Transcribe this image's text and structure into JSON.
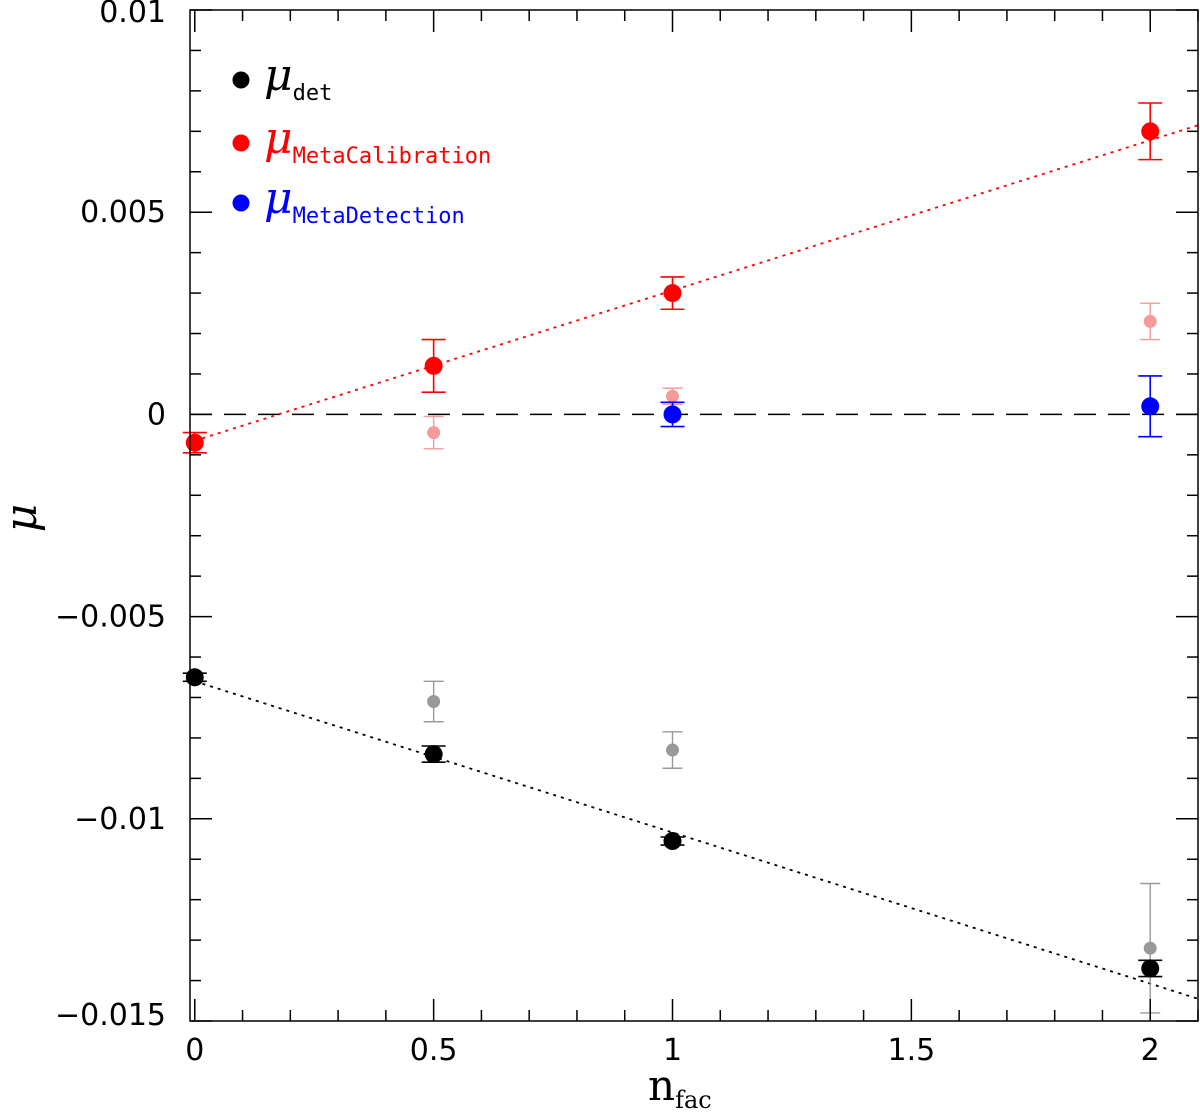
{
  "chart_data": {
    "type": "scatter",
    "title": "",
    "xlabel": "n",
    "xlabel_sub": "fac",
    "ylabel": "μ",
    "xlim": [
      -0.01,
      2.1
    ],
    "ylim": [
      -0.015,
      0.01
    ],
    "x_ticks": [
      0,
      0.5,
      1,
      1.5,
      2
    ],
    "x_tick_labels": [
      "0",
      "0.5",
      "1",
      "1.5",
      "2"
    ],
    "y_ticks": [
      -0.015,
      -0.01,
      -0.005,
      0,
      0.005,
      0.01
    ],
    "y_tick_labels": [
      "−0.015",
      "−0.01",
      "−0.005",
      "0",
      "0.005",
      "0.01"
    ],
    "reference_line": {
      "y": 0,
      "style": "dashed"
    },
    "legend": {
      "position": "top-left",
      "entries": [
        {
          "symbol": "μ",
          "sub": "det",
          "color": "#000000"
        },
        {
          "symbol": "μ",
          "sub": "MetaCalibration",
          "color": "#ff0000"
        },
        {
          "symbol": "μ",
          "sub": "MetaDetection",
          "color": "#0000ff"
        }
      ]
    },
    "series": [
      {
        "name": "μ_det (faint)",
        "color": "#999999",
        "size": "small",
        "points": [
          {
            "x": 0.5,
            "y": -0.0071,
            "err": 0.0005
          },
          {
            "x": 1.0,
            "y": -0.0083,
            "err": 0.00045
          },
          {
            "x": 2.0,
            "y": -0.0132,
            "err": 0.0016
          }
        ]
      },
      {
        "name": "μ_MetaCalibration (faint)",
        "color": "#f49a9a",
        "size": "small",
        "points": [
          {
            "x": 0.5,
            "y": -0.00045,
            "err": 0.0004
          },
          {
            "x": 1.0,
            "y": 0.00045,
            "err": 0.0002
          },
          {
            "x": 2.0,
            "y": 0.0023,
            "err": 0.00045
          }
        ]
      },
      {
        "name": "μ_det",
        "color": "#000000",
        "size": "large",
        "points": [
          {
            "x": 0.0,
            "y": -0.0065,
            "err": 0.0001
          },
          {
            "x": 0.5,
            "y": -0.0084,
            "err": 0.0002
          },
          {
            "x": 1.0,
            "y": -0.01055,
            "err": 0.0001
          },
          {
            "x": 2.0,
            "y": -0.0137,
            "err": 0.0002
          }
        ]
      },
      {
        "name": "μ_MetaCalibration",
        "color": "#ff0000",
        "size": "large",
        "points": [
          {
            "x": 0.0,
            "y": -0.0007,
            "err": 0.00025
          },
          {
            "x": 0.5,
            "y": 0.0012,
            "err": 0.00065
          },
          {
            "x": 1.0,
            "y": 0.003,
            "err": 0.0004
          },
          {
            "x": 2.0,
            "y": 0.007,
            "err": 0.0007
          }
        ]
      },
      {
        "name": "μ_MetaDetection",
        "color": "#0000ff",
        "size": "large",
        "points": [
          {
            "x": 1.0,
            "y": 0.0,
            "err": 0.0003
          },
          {
            "x": 2.0,
            "y": 0.0002,
            "err": 0.00075
          }
        ]
      }
    ],
    "fit_lines": [
      {
        "name": "MetaCalibration fit",
        "color": "#ff0000",
        "style": "dotted",
        "x": [
          0.0,
          2.1
        ],
        "y": [
          -0.00065,
          0.00715
        ]
      },
      {
        "name": "det fit",
        "color": "#000000",
        "style": "dotted",
        "x": [
          0.0,
          2.1
        ],
        "y": [
          -0.0066,
          -0.01445
        ]
      }
    ]
  }
}
